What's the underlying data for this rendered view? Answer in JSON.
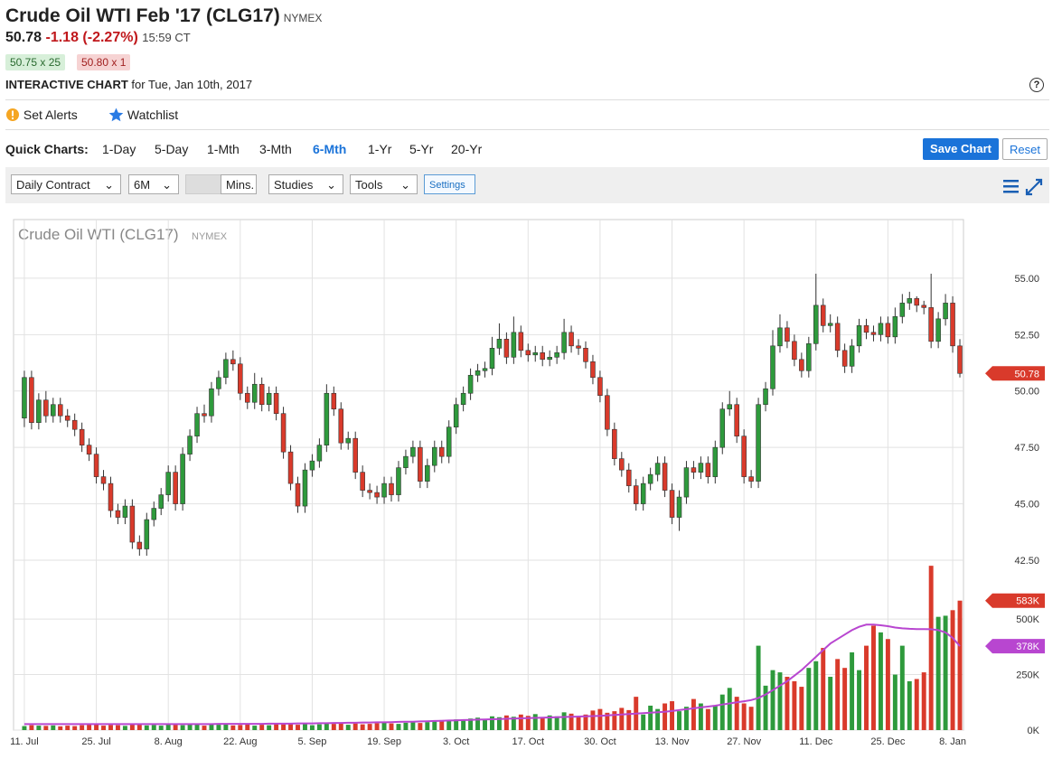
{
  "header": {
    "title": "Crude Oil WTI Feb '17 (CLG17)",
    "exchange": "NYMEX",
    "last": "50.78",
    "change": "-1.18 (-2.27%)",
    "time": "15:59 CT",
    "bid": "50.75 x 25",
    "ask": "50.80 x 1",
    "chart_label": "INTERACTIVE CHART",
    "chart_date": "for Tue, Jan 10th, 2017"
  },
  "actions": [
    "Set Alerts",
    "Watchlist"
  ],
  "quick_charts": {
    "label": "Quick Charts:",
    "options": [
      "1-Day",
      "5-Day",
      "1-Mth",
      "3-Mth",
      "6-Mth",
      "1-Yr",
      "5-Yr",
      "20-Yr"
    ],
    "active": 4,
    "save": "Save Chart",
    "reset": "Reset"
  },
  "toolbar": {
    "contract": "Daily Contract",
    "period": "6M",
    "mins": "Mins.",
    "studies": "Studies",
    "tools": "Tools",
    "settings": "Settings"
  },
  "chart_data": {
    "type": "candlestick",
    "title": "Crude Oil WTI (CLG17)",
    "subtitle": "NYMEX",
    "up_color": "#2e9a3c",
    "down_color": "#d93a2b",
    "ma_color": "#b846d0",
    "open": [
      48.8,
      50.6,
      48.6,
      49.6,
      48.9,
      49.4,
      48.9,
      48.7,
      48.3,
      47.6,
      47.2,
      46.2,
      45.9,
      44.7,
      44.4,
      44.9,
      43.3,
      43.0,
      44.3,
      44.8,
      45.4,
      46.4,
      45.0,
      47.2,
      48.0,
      49.0,
      48.9,
      50.1,
      50.6,
      51.4,
      51.2,
      49.9,
      49.5,
      50.3,
      49.4,
      49.9,
      49.0,
      47.3,
      45.9,
      44.9,
      46.5,
      46.9,
      47.6,
      49.9,
      49.2,
      47.7,
      47.9,
      46.4,
      45.6,
      45.5,
      45.3,
      45.9,
      45.4,
      46.6,
      47.1,
      47.5,
      46.0,
      46.7,
      47.5,
      47.1,
      48.4,
      49.4,
      49.9,
      50.7,
      50.9,
      51.0,
      51.9,
      52.3,
      51.5,
      52.6,
      51.8,
      51.6,
      51.7,
      51.4,
      51.5,
      51.7,
      52.6,
      52.0,
      51.9,
      51.3,
      50.6,
      49.8,
      48.3,
      47.0,
      46.5,
      45.8,
      45.0,
      45.9,
      46.3,
      46.8,
      45.6,
      44.4,
      45.3,
      46.6,
      46.4,
      46.8,
      46.2,
      47.5,
      49.2,
      49.4,
      48.0,
      46.2,
      46.0,
      49.4,
      50.1,
      52.0,
      52.8,
      52.2,
      51.4,
      50.9,
      52.1,
      53.8,
      52.9,
      53.0,
      51.8,
      51.1,
      52.0,
      52.9,
      52.6,
      52.5,
      53.0,
      52.4,
      53.3,
      53.9,
      54.1,
      53.8,
      53.7,
      52.2,
      53.2,
      53.9,
      52.0
    ],
    "high": [
      50.9,
      50.9,
      49.9,
      50.0,
      49.7,
      49.7,
      49.2,
      49.0,
      48.6,
      47.9,
      47.5,
      46.5,
      46.2,
      45.0,
      45.2,
      45.2,
      43.6,
      44.6,
      45.1,
      45.7,
      46.7,
      46.7,
      47.5,
      48.3,
      49.3,
      49.4,
      50.4,
      50.9,
      51.7,
      51.8,
      51.5,
      50.2,
      50.8,
      50.6,
      50.2,
      50.2,
      49.3,
      47.6,
      46.2,
      46.8,
      47.2,
      47.9,
      50.3,
      50.2,
      49.5,
      48.2,
      48.2,
      46.7,
      45.9,
      45.8,
      46.2,
      46.2,
      46.9,
      47.4,
      47.8,
      47.8,
      47.0,
      47.8,
      47.8,
      48.7,
      49.7,
      50.2,
      51.0,
      51.2,
      51.3,
      52.4,
      53.0,
      52.6,
      53.3,
      52.9,
      52.1,
      52.0,
      52.0,
      51.8,
      52.0,
      53.2,
      52.9,
      52.3,
      52.2,
      51.6,
      50.9,
      50.1,
      48.6,
      47.3,
      46.8,
      46.1,
      46.2,
      46.6,
      47.1,
      47.1,
      45.9,
      45.6,
      46.9,
      46.9,
      47.1,
      47.1,
      47.8,
      49.5,
      50.0,
      49.7,
      48.3,
      46.5,
      49.7,
      50.4,
      52.7,
      53.4,
      53.1,
      52.5,
      51.7,
      52.4,
      55.2,
      54.1,
      53.4,
      53.3,
      52.1,
      52.3,
      53.2,
      53.2,
      52.9,
      53.3,
      53.3,
      53.7,
      54.3,
      54.4,
      54.2,
      54.0,
      55.2,
      53.5,
      54.3,
      54.2,
      52.3
    ],
    "low": [
      48.4,
      48.3,
      48.3,
      48.6,
      48.6,
      48.6,
      48.4,
      48.0,
      47.3,
      46.9,
      45.9,
      45.6,
      44.4,
      44.1,
      44.1,
      43.0,
      42.7,
      42.7,
      44.0,
      44.5,
      45.1,
      44.7,
      44.7,
      46.9,
      47.7,
      48.6,
      48.6,
      49.8,
      50.3,
      50.9,
      49.6,
      49.2,
      49.2,
      49.1,
      49.1,
      48.7,
      47.0,
      45.6,
      44.6,
      44.6,
      46.2,
      46.6,
      47.3,
      48.9,
      47.4,
      47.4,
      46.1,
      45.3,
      45.2,
      45.0,
      45.0,
      45.1,
      45.1,
      46.3,
      46.8,
      45.7,
      45.7,
      46.4,
      46.8,
      46.8,
      48.1,
      49.1,
      49.6,
      50.4,
      50.6,
      50.7,
      51.6,
      51.2,
      51.2,
      51.5,
      51.3,
      51.3,
      51.1,
      51.1,
      51.2,
      51.4,
      51.7,
      51.6,
      51.0,
      50.3,
      49.5,
      48.0,
      46.7,
      46.2,
      45.5,
      44.7,
      44.7,
      45.6,
      46.0,
      45.3,
      44.1,
      43.8,
      45.0,
      46.1,
      46.1,
      45.9,
      45.9,
      47.2,
      48.9,
      47.7,
      45.9,
      45.7,
      45.7,
      49.1,
      49.8,
      51.7,
      51.9,
      51.1,
      50.6,
      50.6,
      51.8,
      52.6,
      52.6,
      51.5,
      50.8,
      50.8,
      51.7,
      52.3,
      52.2,
      52.2,
      52.1,
      52.1,
      53.0,
      53.6,
      53.5,
      53.4,
      51.9,
      51.9,
      52.9,
      51.7,
      50.6
    ],
    "close": [
      50.6,
      48.6,
      49.6,
      48.9,
      49.4,
      48.9,
      48.7,
      48.3,
      47.6,
      47.2,
      46.2,
      45.9,
      44.7,
      44.4,
      44.9,
      43.3,
      43.0,
      44.3,
      44.8,
      45.4,
      46.4,
      45.0,
      47.2,
      48.0,
      49.0,
      48.9,
      50.1,
      50.6,
      51.4,
      51.2,
      49.9,
      49.5,
      50.3,
      49.4,
      49.9,
      49.0,
      47.3,
      45.9,
      44.9,
      46.5,
      46.9,
      47.6,
      49.9,
      49.2,
      47.7,
      47.9,
      46.4,
      45.6,
      45.5,
      45.3,
      45.9,
      45.4,
      46.6,
      47.1,
      47.5,
      46.0,
      46.7,
      47.5,
      47.1,
      48.4,
      49.4,
      49.9,
      50.7,
      50.9,
      51.0,
      51.9,
      52.3,
      51.5,
      52.6,
      51.8,
      51.6,
      51.7,
      51.4,
      51.5,
      51.7,
      52.6,
      52.0,
      51.9,
      51.3,
      50.6,
      49.8,
      48.3,
      47.0,
      46.5,
      45.8,
      45.0,
      45.9,
      46.3,
      46.8,
      45.6,
      44.4,
      45.3,
      46.6,
      46.4,
      46.8,
      46.2,
      47.5,
      49.2,
      49.4,
      48.0,
      46.2,
      46.0,
      49.4,
      50.1,
      52.0,
      52.8,
      52.2,
      51.4,
      50.9,
      52.1,
      53.8,
      52.9,
      53.0,
      51.8,
      51.1,
      52.0,
      52.9,
      52.6,
      52.5,
      53.0,
      52.4,
      53.3,
      53.9,
      54.1,
      53.8,
      53.7,
      52.2,
      53.2,
      53.9,
      52.0,
      50.78
    ],
    "volume": [
      18,
      22,
      20,
      19,
      21,
      17,
      20,
      18,
      22,
      24,
      25,
      20,
      23,
      22,
      19,
      26,
      24,
      21,
      23,
      20,
      27,
      24,
      22,
      25,
      28,
      20,
      26,
      24,
      27,
      21,
      23,
      25,
      20,
      24,
      22,
      28,
      26,
      30,
      24,
      27,
      22,
      26,
      30,
      28,
      32,
      24,
      30,
      26,
      28,
      31,
      34,
      30,
      28,
      33,
      38,
      32,
      36,
      40,
      45,
      42,
      48,
      44,
      52,
      56,
      50,
      62,
      58,
      66,
      60,
      70,
      64,
      72,
      58,
      66,
      62,
      80,
      74,
      60,
      70,
      88,
      95,
      78,
      85,
      100,
      90,
      150,
      70,
      110,
      95,
      120,
      130,
      85,
      105,
      140,
      120,
      95,
      110,
      160,
      190,
      150,
      120,
      105,
      380,
      200,
      270,
      260,
      240,
      220,
      195,
      280,
      310,
      370,
      240,
      320,
      280,
      350,
      270,
      380,
      470,
      440,
      410,
      250,
      380,
      220,
      230,
      260,
      740,
      510,
      515,
      540,
      583
    ],
    "ma": [
      27,
      27,
      27,
      27,
      27,
      27,
      27,
      27,
      27,
      27,
      27,
      27,
      27,
      27,
      27,
      27,
      27,
      27,
      27,
      27,
      27,
      27,
      27,
      27,
      27,
      27,
      27,
      28,
      28,
      28,
      28,
      28,
      28,
      28,
      29,
      29,
      29,
      29,
      30,
      30,
      30,
      31,
      31,
      32,
      32,
      33,
      33,
      34,
      34,
      35,
      35,
      36,
      37,
      38,
      38,
      39,
      40,
      41,
      42,
      43,
      44,
      45,
      46,
      47,
      48,
      49,
      50,
      51,
      52,
      53,
      54,
      55,
      56,
      57,
      58,
      59,
      60,
      61,
      62,
      63,
      64,
      66,
      68,
      70,
      72,
      74,
      76,
      78,
      80,
      82,
      86,
      90,
      94,
      98,
      102,
      106,
      110,
      115,
      120,
      125,
      130,
      135,
      145,
      160,
      180,
      200,
      220,
      245,
      270,
      300,
      330,
      360,
      390,
      410,
      430,
      450,
      465,
      475,
      475,
      472,
      468,
      462,
      458,
      456,
      455,
      455,
      454,
      450,
      440,
      415,
      378
    ],
    "volume_label": "583K",
    "ma_label": "378K",
    "xticks": [
      {
        "value": 0,
        "label": "11. Jul"
      },
      {
        "value": 10,
        "label": "25. Jul"
      },
      {
        "value": 20,
        "label": "8. Aug"
      },
      {
        "value": 30,
        "label": "22. Aug"
      },
      {
        "value": 40,
        "label": "5. Sep"
      },
      {
        "value": 50,
        "label": "19. Sep"
      },
      {
        "value": 60,
        "label": "3. Oct"
      },
      {
        "value": 70,
        "label": "17. Oct"
      },
      {
        "value": 80,
        "label": "30. Oct"
      },
      {
        "value": 90,
        "label": "13. Nov"
      },
      {
        "value": 100,
        "label": "27. Nov"
      },
      {
        "value": 110,
        "label": "11. Dec"
      },
      {
        "value": 120,
        "label": "25. Dec"
      },
      {
        "value": 129,
        "label": "8. Jan"
      }
    ],
    "xlim": [
      -1.5,
      130.5
    ],
    "ylim": [
      42.5,
      57.6
    ],
    "yticks": [
      {
        "value": 42.5,
        "label": "42.50"
      },
      {
        "value": 45,
        "label": "45.00"
      },
      {
        "value": 47.5,
        "label": "47.50"
      },
      {
        "value": 50,
        "label": "50.00"
      },
      {
        "value": 52.5,
        "label": "52.50"
      },
      {
        "value": 55,
        "label": "55.00"
      }
    ],
    "y2lim": [
      0,
      765
    ],
    "y2ticks": [
      {
        "value": 0,
        "label": "0K"
      },
      {
        "value": 250,
        "label": "250K"
      },
      {
        "value": 500,
        "label": "500K"
      }
    ],
    "grid": true
  }
}
